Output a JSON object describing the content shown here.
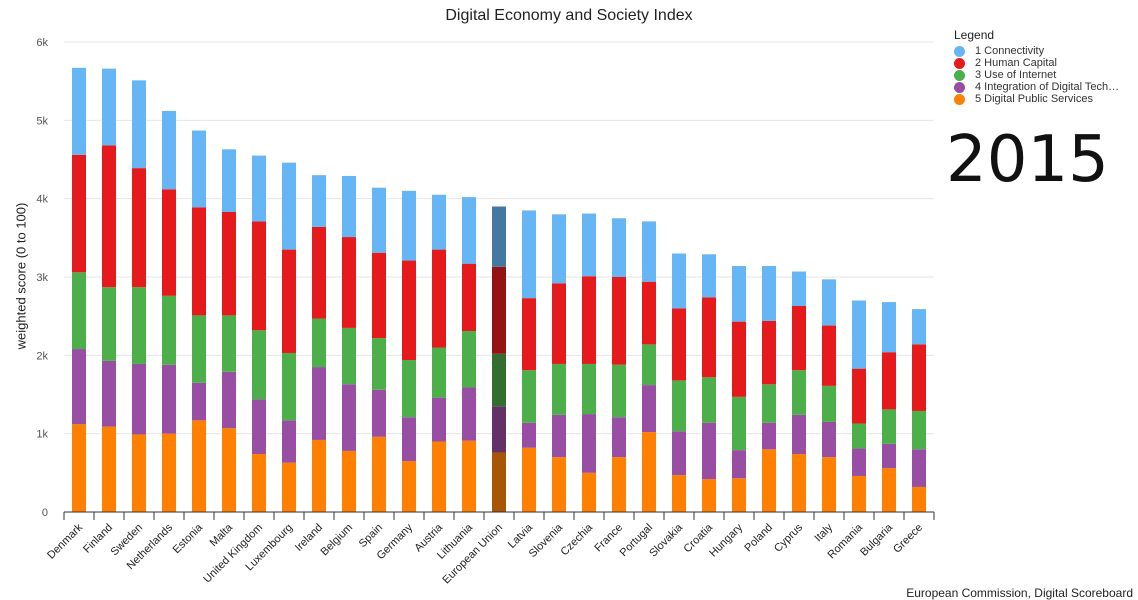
{
  "chart_data": {
    "type": "bar",
    "stacked": true,
    "title": "Digital Economy and Society Index",
    "ylabel": "weighted score (0 to 100)",
    "xlabel": "",
    "ylim": [
      0,
      6000
    ],
    "yticks": [
      "0",
      "1k",
      "2k",
      "3k",
      "4k",
      "5k",
      "6k"
    ],
    "ytick_values": [
      0,
      1000,
      2000,
      3000,
      4000,
      5000,
      6000
    ],
    "grid": true,
    "legend_title": "Legend",
    "legend_position": "top-right",
    "highlight_category": "European Union",
    "categories": [
      "Denmark",
      "Finland",
      "Sweden",
      "Netherlands",
      "Estonia",
      "Malta",
      "United Kingdom",
      "Luxembourg",
      "Ireland",
      "Belgium",
      "Spain",
      "Germany",
      "Austria",
      "Lithuania",
      "European Union",
      "Latvia",
      "Slovenia",
      "Czechia",
      "France",
      "Portugal",
      "Slovakia",
      "Croatia",
      "Hungary",
      "Poland",
      "Cyprus",
      "Italy",
      "Romania",
      "Bulgaria",
      "Greece"
    ],
    "series": [
      {
        "name": "5 Digital Public Services",
        "color": "#ff8000",
        "highlight_color": "#a85506",
        "values": [
          1120,
          1090,
          990,
          1000,
          1170,
          1070,
          740,
          630,
          920,
          780,
          960,
          650,
          900,
          910,
          760,
          820,
          700,
          500,
          700,
          1020,
          470,
          420,
          430,
          800,
          740,
          700,
          460,
          560,
          320
        ]
      },
      {
        "name": "4 Integration of Digital Tech…",
        "color": "#984ea3",
        "highlight_color": "#623266",
        "values": [
          960,
          840,
          900,
          880,
          480,
          720,
          700,
          540,
          930,
          850,
          600,
          560,
          560,
          680,
          590,
          320,
          540,
          750,
          510,
          600,
          560,
          720,
          360,
          340,
          500,
          450,
          350,
          310,
          480
        ]
      },
      {
        "name": "3 Use of Internet",
        "color": "#4daf4a",
        "highlight_color": "#316e30",
        "values": [
          980,
          940,
          980,
          880,
          860,
          720,
          880,
          860,
          620,
          720,
          660,
          730,
          640,
          720,
          670,
          670,
          650,
          640,
          670,
          520,
          650,
          580,
          680,
          490,
          570,
          460,
          320,
          440,
          490
        ]
      },
      {
        "name": "2 Human Capital",
        "color": "#e41a1c",
        "highlight_color": "#951314",
        "values": [
          1500,
          1810,
          1520,
          1360,
          1380,
          1320,
          1390,
          1320,
          1170,
          1160,
          1090,
          1270,
          1250,
          860,
          1110,
          920,
          1030,
          1120,
          1120,
          800,
          920,
          1020,
          960,
          810,
          820,
          770,
          700,
          730,
          850
        ]
      },
      {
        "name": "1 Connectivity",
        "color": "#66b5f5",
        "highlight_color": "#4378a3",
        "values": [
          1110,
          980,
          1120,
          1000,
          980,
          800,
          840,
          1110,
          660,
          780,
          830,
          890,
          700,
          850,
          770,
          1120,
          880,
          800,
          750,
          770,
          700,
          550,
          710,
          700,
          440,
          590,
          870,
          640,
          450
        ]
      }
    ]
  },
  "overlay": {
    "year": "2015",
    "source": "European Commission, Digital Scoreboard"
  }
}
